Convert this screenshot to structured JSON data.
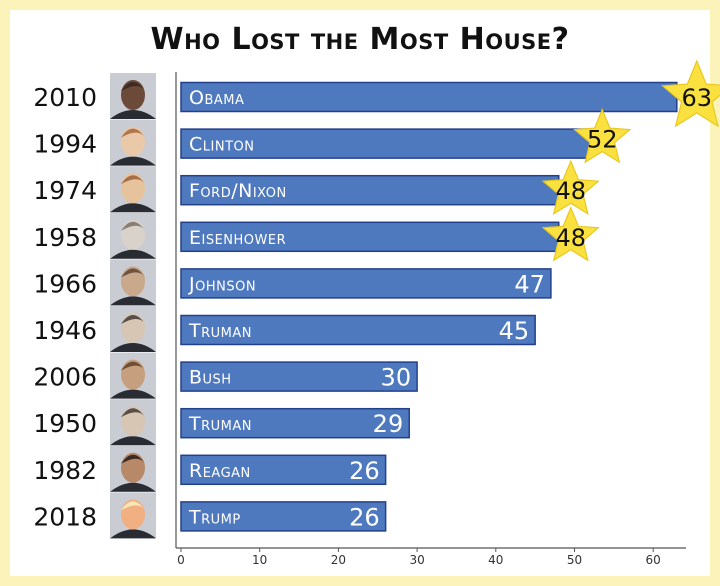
{
  "chart_data": {
    "type": "bar",
    "orientation": "horizontal",
    "title": "Who Lost the Most House?",
    "categories": [
      "Obama",
      "Clinton",
      "Ford/Nixon",
      "Eisenhower",
      "Johnson",
      "Truman",
      "Bush",
      "Truman",
      "Reagan",
      "Trump"
    ],
    "years": [
      "2010",
      "1994",
      "1974",
      "1958",
      "1966",
      "1946",
      "2006",
      "1950",
      "1982",
      "2018"
    ],
    "values": [
      63,
      52,
      48,
      48,
      47,
      45,
      30,
      29,
      26,
      26
    ],
    "starred": [
      true,
      true,
      true,
      true,
      false,
      false,
      false,
      false,
      false,
      false
    ],
    "portrait_icons": [
      "obama-portrait-icon",
      "clinton-portrait-icon",
      "ford-portrait-icon",
      "eisenhower-portrait-icon",
      "johnson-portrait-icon",
      "truman-portrait-icon",
      "bush-portrait-icon",
      "truman-portrait-icon",
      "reagan-portrait-icon",
      "trump-portrait-icon"
    ],
    "xlim": [
      0,
      65
    ],
    "xticks": [
      0,
      10,
      20,
      30,
      40,
      50,
      60
    ],
    "xlabel": "",
    "ylabel": "",
    "grid": false,
    "legend": "none",
    "colors": {
      "bar_fill": "#4f79bf",
      "bar_stroke": "#23408a",
      "star_fill": "#fbe13f",
      "star_stroke": "#e8c81f",
      "page_background": "#fbf3b9",
      "card_background": "#ffffff"
    }
  }
}
